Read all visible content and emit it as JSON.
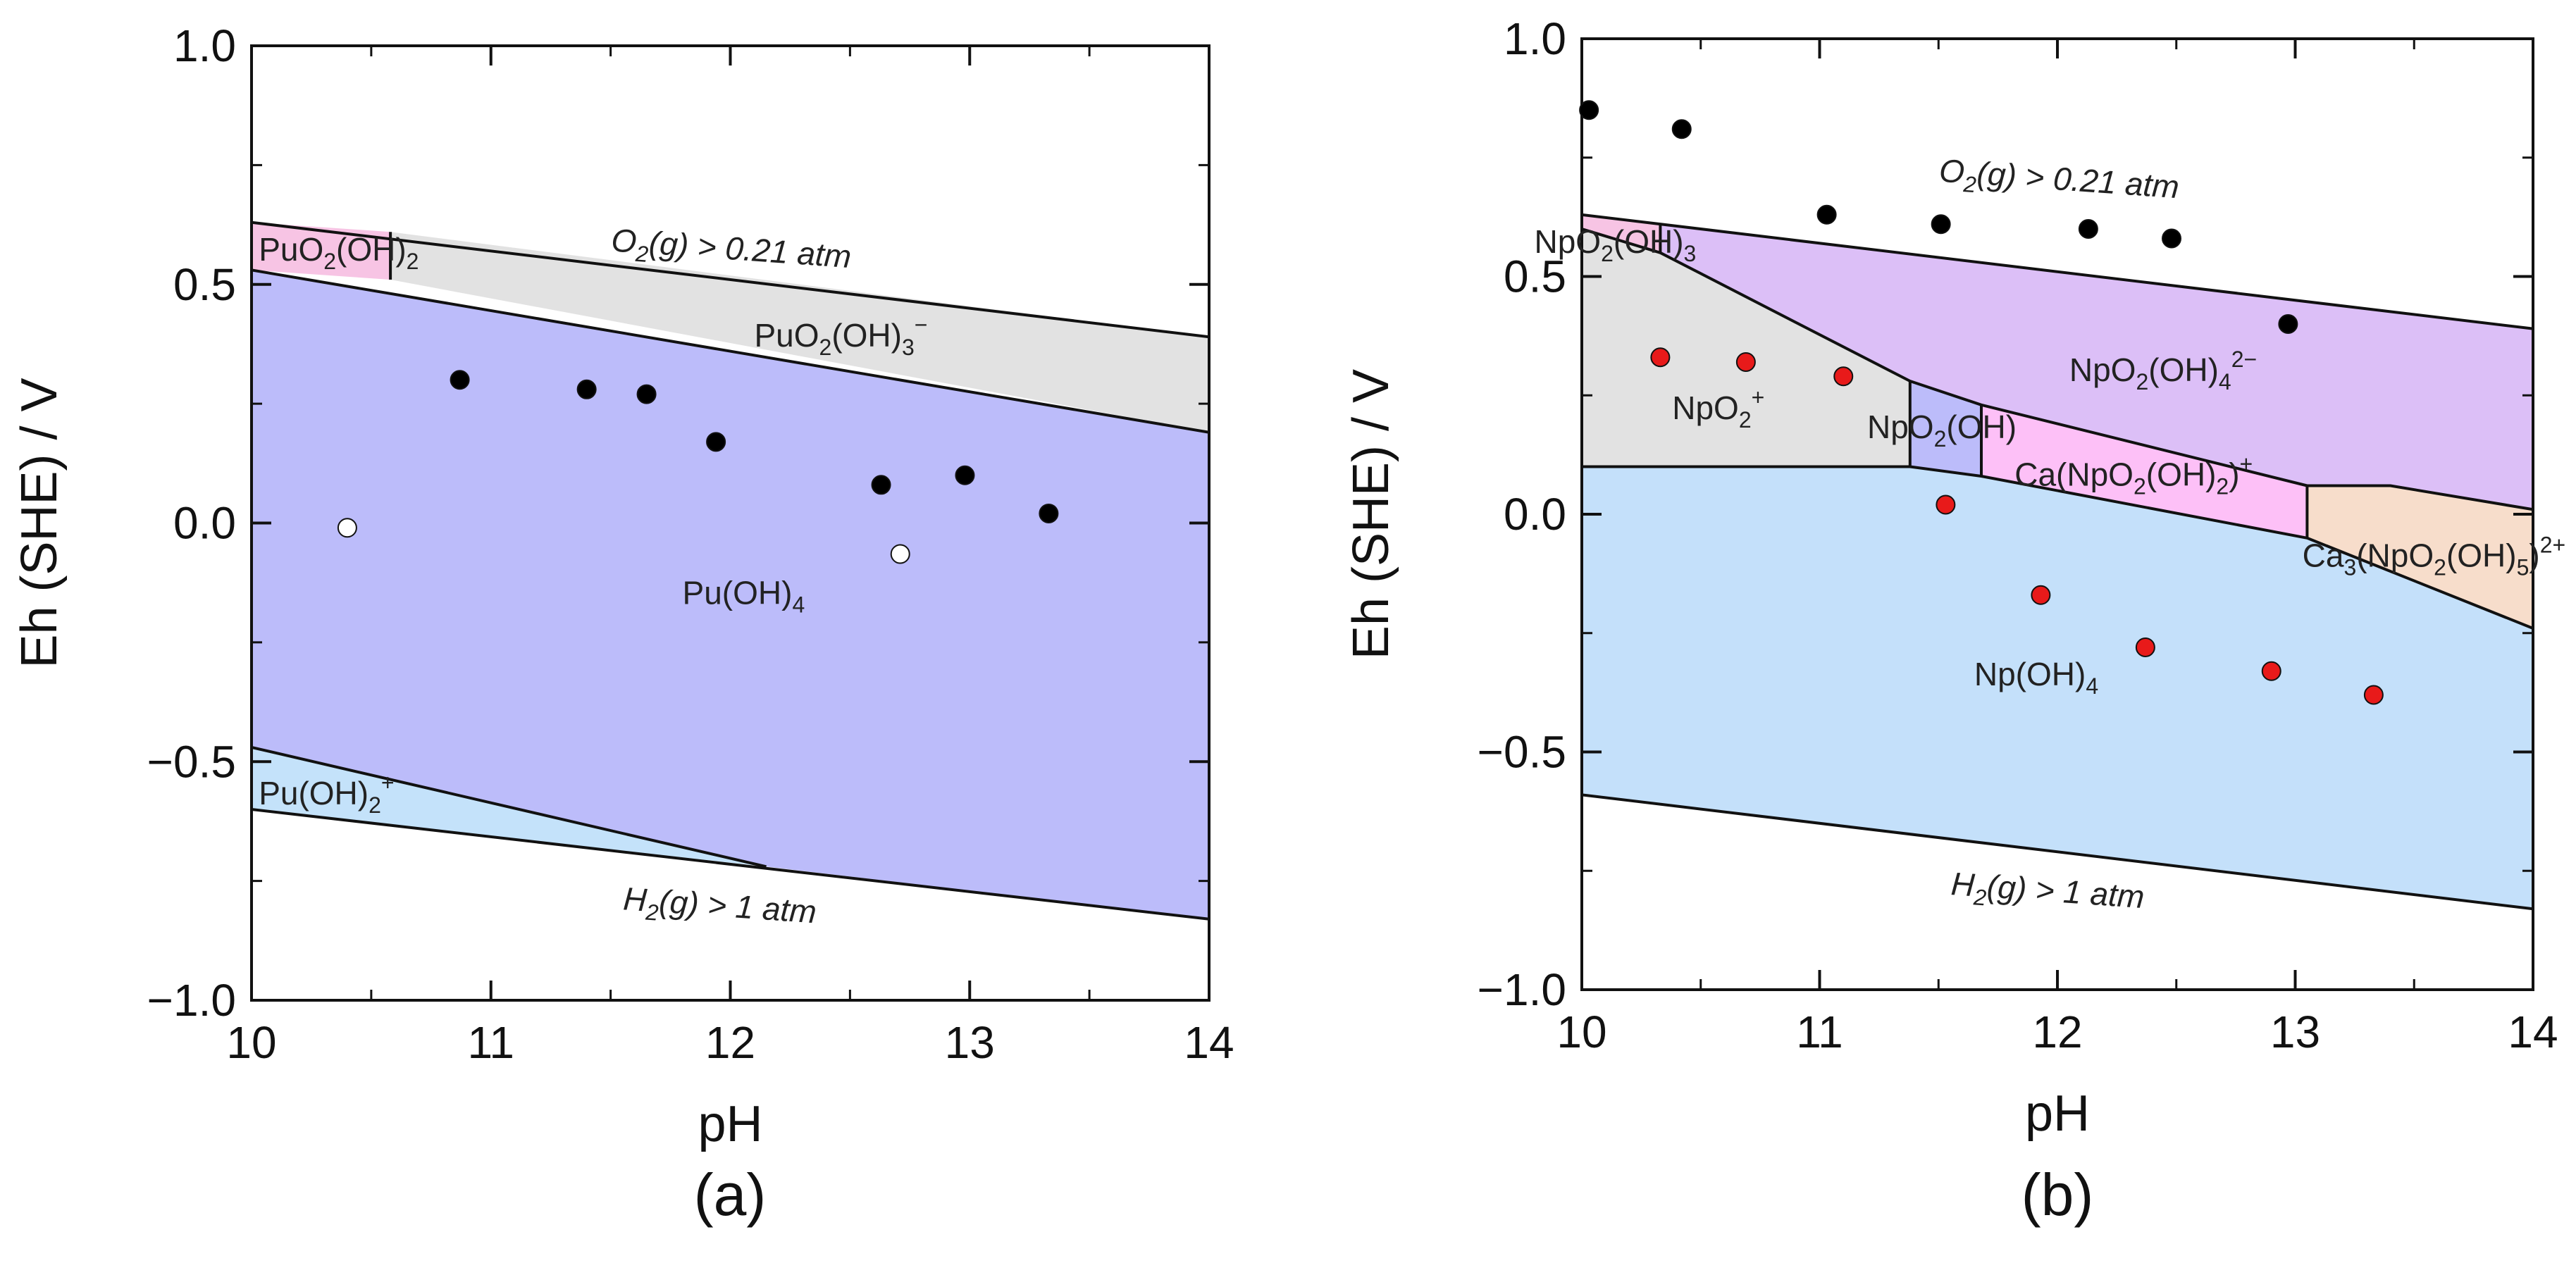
{
  "chart_data": [
    {
      "type": "scatter",
      "panel": "(a)",
      "xlabel": "pH",
      "ylabel": "Eh (SHE) / V",
      "xlim": [
        10,
        14
      ],
      "ylim": [
        -1.0,
        1.0
      ],
      "xticks": [
        10,
        11,
        12,
        13,
        14
      ],
      "yticks": [
        1.0,
        0.5,
        0.0,
        -0.5,
        -1.0
      ],
      "ytick_labels": [
        "1.0",
        "0.5",
        "0.0",
        "−0.5",
        "−1.0"
      ],
      "regions": [
        {
          "name": "PuO2(OH)2",
          "color": "#f7c4e4",
          "points": [
            [
              10,
              0.63
            ],
            [
              10.58,
              0.61
            ],
            [
              10.58,
              0.51
            ],
            [
              10,
              0.53
            ]
          ]
        },
        {
          "name": "PuO2(OH)3-",
          "color": "#e2e2e2",
          "points": [
            [
              10.58,
              0.61
            ],
            [
              14,
              0.39
            ],
            [
              14,
              0.19
            ],
            [
              10.58,
              0.51
            ]
          ]
        },
        {
          "name": "Pu(OH)4",
          "color": "#bcbcfa",
          "points": [
            [
              10,
              0.53
            ],
            [
              14,
              0.19
            ],
            [
              14,
              -0.83
            ],
            [
              12.15,
              -0.72
            ],
            [
              10,
              -0.47
            ]
          ]
        },
        {
          "name": "Pu(OH)2+",
          "color": "#c4e2fa",
          "points": [
            [
              10,
              -0.47
            ],
            [
              12.15,
              -0.72
            ],
            [
              10,
              -0.6
            ]
          ]
        }
      ],
      "lines": [
        {
          "name": "O2 upper limit",
          "points": [
            [
              10,
              0.63
            ],
            [
              14,
              0.39
            ]
          ]
        },
        {
          "name": "H2 lower limit",
          "points": [
            [
              10,
              -0.6
            ],
            [
              14,
              -0.83
            ]
          ]
        },
        {
          "name": "PuO2(OH)3- / Pu(OH)4",
          "points": [
            [
              10,
              0.53
            ],
            [
              14,
              0.19
            ]
          ]
        },
        {
          "name": "Pu(OH)4 / Pu(OH)2+",
          "points": [
            [
              10,
              -0.47
            ],
            [
              12.15,
              -0.72
            ]
          ]
        },
        {
          "name": "PuO2(OH)2 / PuO2(OH)3-",
          "points": [
            [
              10.58,
              0.61
            ],
            [
              10.58,
              0.51
            ]
          ]
        }
      ],
      "series": [
        {
          "name": "filled",
          "fill": "#000000",
          "x": [
            10.87,
            11.4,
            11.65,
            11.94,
            12.63,
            12.98,
            13.33
          ],
          "y": [
            0.3,
            0.28,
            0.27,
            0.17,
            0.08,
            0.1,
            0.02
          ]
        },
        {
          "name": "open",
          "fill": "#ffffff",
          "x": [
            10.4,
            12.71
          ],
          "y": [
            -0.01,
            -0.065
          ]
        }
      ],
      "labels": [
        {
          "main": "O",
          "sub": "2",
          "rest": "(g) > 0.21 atm",
          "x": 11.5,
          "y": 0.57,
          "rotate": 4,
          "italic": true
        },
        {
          "main": "PuO",
          "sub": "2",
          "rest": "(OH)",
          "sub2": "2",
          "x": 10.03,
          "y": 0.55
        },
        {
          "main": "PuO",
          "sub": "2",
          "rest": "(OH)",
          "sub2": "3",
          "sup": "−",
          "x": 12.1,
          "y": 0.37
        },
        {
          "main": "Pu(OH)",
          "sub": "4",
          "x": 11.8,
          "y": -0.17
        },
        {
          "main": "Pu(OH)",
          "sub": "2",
          "sup": "+",
          "x": 10.03,
          "y": -0.59
        },
        {
          "main": "H",
          "sub": "2",
          "rest": "(g) > 1 atm",
          "x": 11.55,
          "y": -0.81,
          "rotate": 4,
          "italic": true
        }
      ]
    },
    {
      "type": "scatter",
      "panel": "(b)",
      "xlabel": "pH",
      "ylabel": "Eh (SHE) / V",
      "xlim": [
        10,
        14
      ],
      "ylim": [
        -1.0,
        1.0
      ],
      "xticks": [
        10,
        11,
        12,
        13,
        14
      ],
      "yticks": [
        1.0,
        0.5,
        0.0,
        -0.5,
        -1.0
      ],
      "ytick_labels": [
        "1.0",
        "0.5",
        "0.0",
        "−0.5",
        "−1.0"
      ],
      "regions": [
        {
          "name": "NpO2(OH)3",
          "color": "#f7c4e4",
          "points": [
            [
              10,
              0.63
            ],
            [
              10.33,
              0.61
            ],
            [
              10.33,
              0.55
            ],
            [
              10,
              0.6
            ]
          ]
        },
        {
          "name": "NpO2(OH)4 2-",
          "color": "#dcbff7",
          "points": [
            [
              10.33,
              0.61
            ],
            [
              14,
              0.39
            ],
            [
              14,
              0.01
            ],
            [
              13.4,
              0.06
            ],
            [
              13.05,
              0.06
            ],
            [
              11.68,
              0.23
            ],
            [
              11.38,
              0.28
            ],
            [
              10.33,
              0.55
            ]
          ]
        },
        {
          "name": "NpO2+",
          "color": "#e2e2e2",
          "points": [
            [
              10,
              0.6
            ],
            [
              10.33,
              0.55
            ],
            [
              11.38,
              0.28
            ],
            [
              11.38,
              0.1
            ],
            [
              10,
              0.1
            ]
          ]
        },
        {
          "name": "NpO2(OH)",
          "color": "#bcbcfa",
          "points": [
            [
              11.38,
              0.28
            ],
            [
              11.68,
              0.23
            ],
            [
              11.68,
              0.08
            ],
            [
              11.38,
              0.1
            ]
          ]
        },
        {
          "name": "Ca(NpO2(OH)2)+",
          "color": "#fdc0f7",
          "points": [
            [
              11.68,
              0.23
            ],
            [
              13.05,
              0.06
            ],
            [
              13.05,
              -0.05
            ],
            [
              11.68,
              0.08
            ]
          ]
        },
        {
          "name": "Ca3(NpO2(OH)5)2+",
          "color": "#f7ddcb",
          "points": [
            [
              13.05,
              0.06
            ],
            [
              13.4,
              0.06
            ],
            [
              14,
              0.01
            ],
            [
              14,
              -0.24
            ],
            [
              13.05,
              -0.05
            ]
          ]
        },
        {
          "name": "Np(OH)4",
          "color": "#c4e0fa",
          "points": [
            [
              10,
              0.1
            ],
            [
              11.38,
              0.1
            ],
            [
              11.68,
              0.08
            ],
            [
              13.05,
              -0.05
            ],
            [
              14,
              -0.24
            ],
            [
              14,
              -0.83
            ],
            [
              10,
              -0.59
            ]
          ]
        }
      ],
      "lines": [
        {
          "name": "O2 upper limit",
          "points": [
            [
              10,
              0.63
            ],
            [
              14,
              0.39
            ]
          ]
        },
        {
          "name": "H2 lower limit",
          "points": [
            [
              10,
              -0.59
            ],
            [
              14,
              -0.83
            ]
          ]
        },
        {
          "name": "NpO2(OH)3 / NpO2(OH)4 boundary",
          "points": [
            [
              10.33,
              0.61
            ],
            [
              10.33,
              0.55
            ]
          ]
        },
        {
          "name": "upper oxidized boundary",
          "points": [
            [
              10,
              0.6
            ],
            [
              10.33,
              0.55
            ],
            [
              11.38,
              0.28
            ],
            [
              11.68,
              0.23
            ],
            [
              13.05,
              0.06
            ],
            [
              13.4,
              0.06
            ],
            [
              14,
              0.01
            ]
          ]
        },
        {
          "name": "Np(OH)4 upper boundary",
          "points": [
            [
              10,
              0.1
            ],
            [
              11.38,
              0.1
            ],
            [
              11.68,
              0.08
            ],
            [
              13.05,
              -0.05
            ],
            [
              14,
              -0.24
            ]
          ]
        },
        {
          "name": "NpO2+ / NpO2(OH)",
          "points": [
            [
              11.38,
              0.28
            ],
            [
              11.38,
              0.1
            ]
          ]
        },
        {
          "name": "NpO2(OH) / Ca(NpO2(OH)2)+",
          "points": [
            [
              11.68,
              0.23
            ],
            [
              11.68,
              0.08
            ]
          ]
        },
        {
          "name": "Ca(NpO2(OH)2)+ / Ca3(NpO2(OH)5)2+",
          "points": [
            [
              13.05,
              0.06
            ],
            [
              13.05,
              -0.05
            ]
          ]
        }
      ],
      "series": [
        {
          "name": "black",
          "fill": "#000000",
          "x": [
            10.03,
            10.42,
            11.03,
            11.51,
            12.13,
            12.48,
            12.97
          ],
          "y": [
            0.85,
            0.81,
            0.63,
            0.61,
            0.6,
            0.58,
            0.4
          ]
        },
        {
          "name": "red",
          "fill": "#e81a1a",
          "x": [
            10.33,
            10.69,
            11.1,
            11.53,
            11.93,
            12.37,
            12.9,
            13.33
          ],
          "y": [
            0.33,
            0.32,
            0.29,
            0.02,
            -0.17,
            -0.28,
            -0.33,
            -0.38
          ]
        }
      ],
      "labels": [
        {
          "main": "O",
          "sub": "2",
          "rest": "(g) > 0.21 atm",
          "x": 11.5,
          "y": 0.7,
          "rotate": 4,
          "italic": true
        },
        {
          "main": "NpO",
          "sub": "2",
          "rest": "(OH)",
          "sub2": "3",
          "x": 9.8,
          "y": 0.55
        },
        {
          "main": "NpO",
          "sub": "2",
          "rest": "(OH)",
          "sub2": "4",
          "sup": "2−",
          "x": 12.05,
          "y": 0.28
        },
        {
          "main": "NpO",
          "sub": "2",
          "sup": "+",
          "x": 10.38,
          "y": 0.2
        },
        {
          "main": "NpO",
          "sub": "2",
          "rest": "(OH)",
          "x": 11.2,
          "y": 0.16
        },
        {
          "main": "Ca(NpO",
          "sub": "2",
          "rest": "(OH)",
          "sub2": "2",
          "rest2": ")",
          "sup": "+",
          "x": 11.82,
          "y": 0.06
        },
        {
          "main": "Ca",
          "sub": "3",
          "rest": "(NpO",
          "sub2": "2",
          "rest2": "(OH)",
          "sub3": "5",
          "rest3": ")",
          "sup": "2+",
          "x": 13.03,
          "y": -0.11
        },
        {
          "main": "Np(OH)",
          "sub": "4",
          "x": 11.65,
          "y": -0.36
        },
        {
          "main": "H",
          "sub": "2",
          "rest": "(g) > 1 atm",
          "x": 11.55,
          "y": -0.8,
          "rotate": 4,
          "italic": true
        }
      ]
    }
  ]
}
